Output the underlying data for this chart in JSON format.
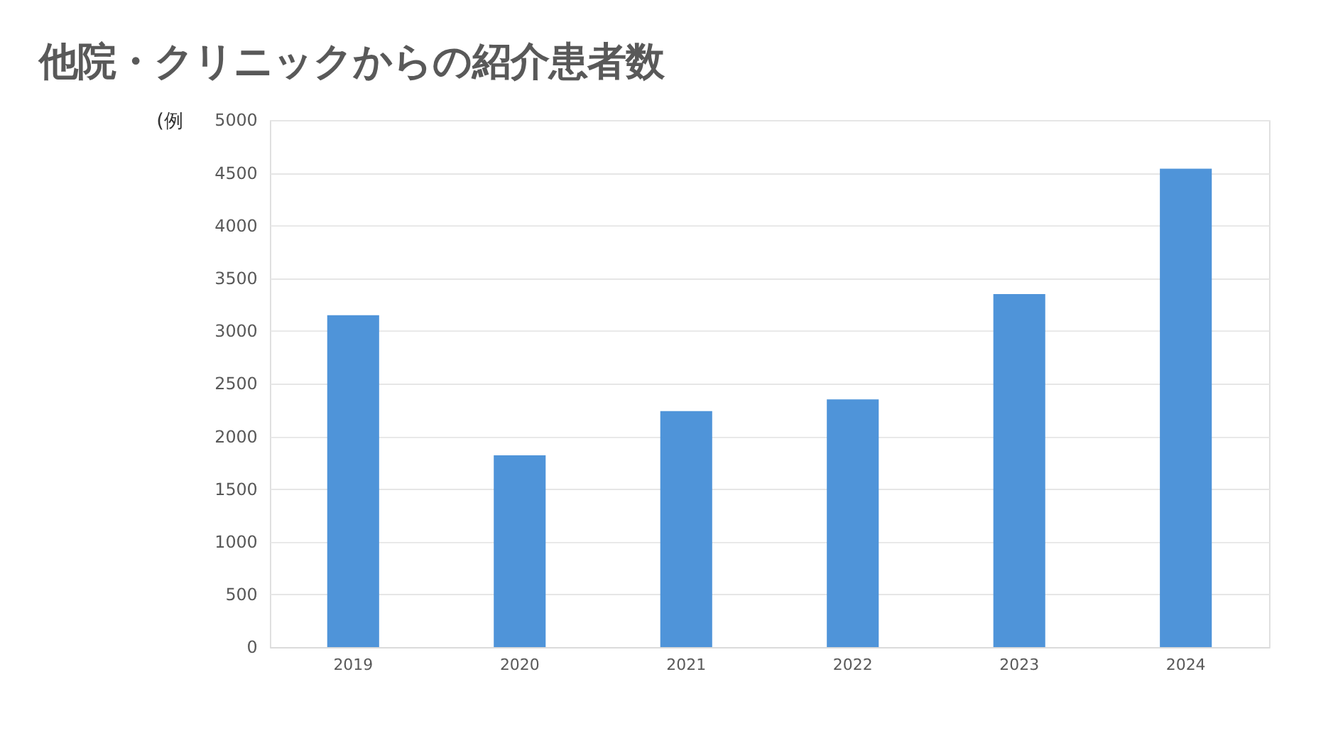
{
  "chart_data": {
    "type": "bar",
    "title": "他院・クリニックからの紹介患者数",
    "ylabel": "(例",
    "categories": [
      "2019",
      "2020",
      "2021",
      "2022",
      "2023",
      "2024"
    ],
    "values": [
      3150,
      1820,
      2240,
      2350,
      3350,
      4540
    ],
    "color": "#4f94d9",
    "ylim": [
      0,
      5000
    ],
    "yticks": [
      0,
      500,
      1000,
      1500,
      2000,
      2500,
      3000,
      3500,
      4000,
      4500,
      5000
    ],
    "grid": "y"
  }
}
